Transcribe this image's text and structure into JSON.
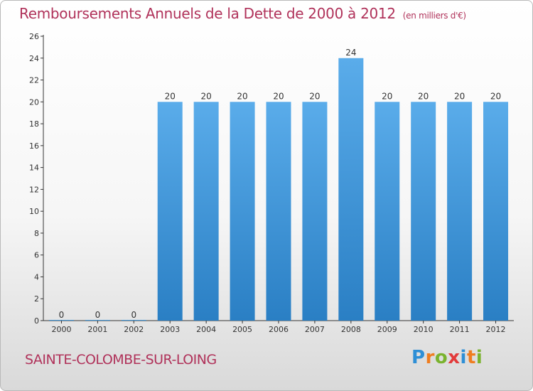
{
  "title": "Remboursements Annuels de la Dette de 2000 à 2012",
  "unit_note": "(en milliers d'€)",
  "commune": "SAINTE-COLOMBE-SUR-LOING",
  "logo": {
    "text": "Proxiti",
    "letters": [
      {
        "char": "P",
        "color": "#2e8fd6"
      },
      {
        "char": "r",
        "color": "#ef7d1f"
      },
      {
        "char": "o",
        "color": "#7ab32e"
      },
      {
        "char": "x",
        "color": "#e23b3b"
      },
      {
        "char": "i",
        "color": "#2e8fd6"
      },
      {
        "char": "t",
        "color": "#ef7d1f"
      },
      {
        "char": "i",
        "color": "#7ab32e"
      }
    ]
  },
  "colors": {
    "title": "#b0325a",
    "bar_top": "#5aacea",
    "bar_bottom": "#2a7fc4"
  },
  "chart_data": {
    "type": "bar",
    "title": "Remboursements Annuels de la Dette de 2000 à 2012",
    "xlabel": "",
    "ylabel": "",
    "categories": [
      "2000",
      "2001",
      "2002",
      "2003",
      "2004",
      "2005",
      "2006",
      "2007",
      "2008",
      "2009",
      "2010",
      "2011",
      "2012"
    ],
    "values": [
      0,
      0,
      0,
      20,
      20,
      20,
      20,
      20,
      24,
      20,
      20,
      20,
      20
    ],
    "ylim": [
      0,
      26
    ],
    "yticks": [
      0,
      2,
      4,
      6,
      8,
      10,
      12,
      14,
      16,
      18,
      20,
      22,
      24,
      26
    ],
    "grid": false,
    "legend": "none"
  }
}
